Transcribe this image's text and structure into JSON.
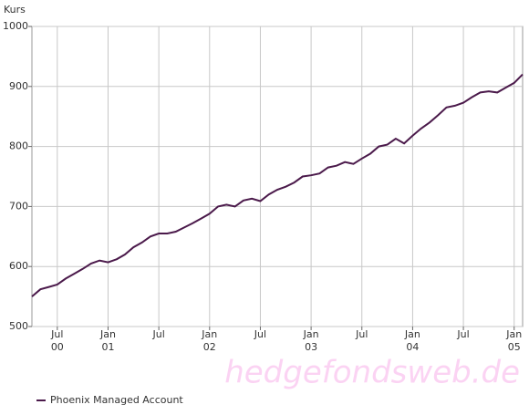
{
  "chart_data": {
    "type": "line",
    "y_label": "Kurs",
    "watermark": "hedgefondsweb.de",
    "x": [
      "2000-04",
      "2000-05",
      "2000-06",
      "2000-07",
      "2000-08",
      "2000-09",
      "2000-10",
      "2000-11",
      "2000-12",
      "2001-01",
      "2001-02",
      "2001-03",
      "2001-04",
      "2001-05",
      "2001-06",
      "2001-07",
      "2001-08",
      "2001-09",
      "2001-10",
      "2001-11",
      "2001-12",
      "2002-01",
      "2002-02",
      "2002-03",
      "2002-04",
      "2002-05",
      "2002-06",
      "2002-07",
      "2002-08",
      "2002-09",
      "2002-10",
      "2002-11",
      "2002-12",
      "2003-01",
      "2003-02",
      "2003-03",
      "2003-04",
      "2003-05",
      "2003-06",
      "2003-07",
      "2003-08",
      "2003-09",
      "2003-10",
      "2003-11",
      "2003-12",
      "2004-01",
      "2004-02",
      "2004-03",
      "2004-04",
      "2004-05",
      "2004-06",
      "2004-07",
      "2004-08",
      "2004-09",
      "2004-10",
      "2004-11",
      "2004-12",
      "2005-01",
      "2005-02"
    ],
    "series": [
      {
        "name": "Phoenix Managed Account",
        "color": "#4b1a4b",
        "values": [
          550,
          562,
          566,
          570,
          580,
          588,
          596,
          605,
          610,
          607,
          612,
          620,
          632,
          640,
          650,
          655,
          655,
          658,
          665,
          672,
          680,
          688,
          700,
          703,
          700,
          710,
          713,
          709,
          720,
          728,
          733,
          740,
          750,
          752,
          755,
          765,
          768,
          774,
          771,
          780,
          788,
          800,
          803,
          813,
          805,
          818,
          830,
          840,
          852,
          865,
          868,
          873,
          882,
          890,
          892,
          890,
          898,
          906,
          920
        ]
      }
    ],
    "xlim": [
      "2000-04",
      "2005-02"
    ],
    "xticks": [
      {
        "value": "2000-07",
        "label": [
          "Jul",
          "00"
        ]
      },
      {
        "value": "2001-01",
        "label": [
          "Jan",
          "01"
        ]
      },
      {
        "value": "2001-07",
        "label": [
          "Jul"
        ]
      },
      {
        "value": "2002-01",
        "label": [
          "Jan",
          "02"
        ]
      },
      {
        "value": "2002-07",
        "label": [
          "Jul"
        ]
      },
      {
        "value": "2003-01",
        "label": [
          "Jan",
          "03"
        ]
      },
      {
        "value": "2003-07",
        "label": [
          "Jul"
        ]
      },
      {
        "value": "2004-01",
        "label": [
          "Jan",
          "04"
        ]
      },
      {
        "value": "2004-07",
        "label": [
          "Jul"
        ]
      },
      {
        "value": "2005-01",
        "label": [
          "Jan",
          "05"
        ]
      }
    ],
    "ylim": [
      500,
      1000
    ],
    "yticks": [
      500,
      600,
      700,
      800,
      900,
      1000
    ],
    "grid": true,
    "legend": "bottom-left"
  }
}
